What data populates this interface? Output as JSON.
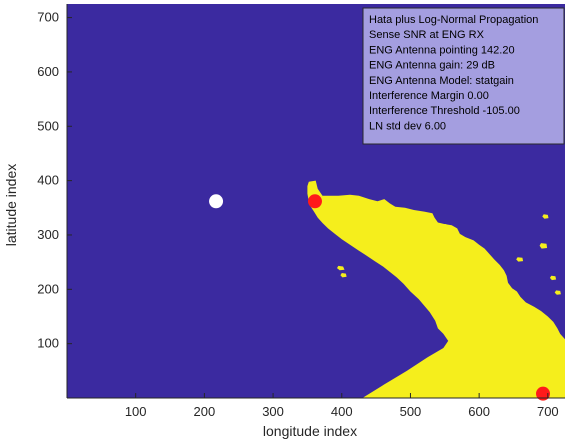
{
  "chart_data": {
    "type": "heatmap",
    "title": "",
    "xlabel": "longitude index",
    "ylabel": "latitude index",
    "xlim": [
      0,
      725
    ],
    "ylim": [
      0,
      725
    ],
    "x_ticks": [
      100,
      200,
      300,
      400,
      500,
      600,
      700
    ],
    "y_ticks": [
      100,
      200,
      300,
      400,
      500,
      600,
      700
    ],
    "grid": false,
    "colors": {
      "background": "#3b2aa0",
      "region": "#f5ee1c",
      "white_marker": "#ffffff",
      "red_marker": "#ff1a1a",
      "info_box_fill": "#a49ee0"
    },
    "markers": [
      {
        "color": "white",
        "x": 217,
        "y": 362
      },
      {
        "color": "red",
        "x": 361,
        "y": 362
      },
      {
        "color": "red",
        "x": 693,
        "y": 8
      }
    ],
    "info_box": {
      "position": "top-right",
      "lines": [
        "Hata plus Log-Normal Propagation",
        "Sense SNR at ENG RX",
        "ENG Antenna pointing 142.20",
        "ENG Antenna gain: 29 dB",
        "ENG Antenna Model: statgain",
        "Interference Margin 0.00",
        "Interference Threshold  -105.00",
        "LN std dev  6.00"
      ]
    },
    "region_polygons": [
      [
        [
          352,
          398
        ],
        [
          362,
          400
        ],
        [
          365,
          385
        ],
        [
          372,
          372
        ],
        [
          395,
          372
        ],
        [
          412,
          374
        ],
        [
          425,
          372
        ],
        [
          440,
          366
        ],
        [
          452,
          362
        ],
        [
          462,
          366
        ],
        [
          470,
          358
        ],
        [
          478,
          352
        ],
        [
          492,
          350
        ],
        [
          505,
          346
        ],
        [
          520,
          343
        ],
        [
          532,
          340
        ],
        [
          535,
          332
        ],
        [
          540,
          323
        ],
        [
          550,
          320
        ],
        [
          560,
          318
        ],
        [
          568,
          312
        ],
        [
          572,
          302
        ],
        [
          580,
          296
        ],
        [
          592,
          290
        ],
        [
          600,
          282
        ],
        [
          608,
          275
        ],
        [
          615,
          265
        ],
        [
          622,
          255
        ],
        [
          630,
          245
        ],
        [
          636,
          235
        ],
        [
          640,
          225
        ],
        [
          642,
          212
        ],
        [
          648,
          202
        ],
        [
          655,
          196
        ],
        [
          660,
          186
        ],
        [
          668,
          176
        ],
        [
          680,
          168
        ],
        [
          690,
          160
        ],
        [
          700,
          150
        ],
        [
          708,
          140
        ],
        [
          714,
          128
        ],
        [
          718,
          118
        ],
        [
          725,
          108
        ],
        [
          725,
          0
        ],
        [
          430,
          0
        ],
        [
          462,
          25
        ],
        [
          495,
          50
        ],
        [
          525,
          75
        ],
        [
          548,
          92
        ],
        [
          555,
          105
        ],
        [
          548,
          118
        ],
        [
          540,
          128
        ],
        [
          536,
          142
        ],
        [
          528,
          158
        ],
        [
          520,
          170
        ],
        [
          512,
          182
        ],
        [
          500,
          196
        ],
        [
          490,
          210
        ],
        [
          480,
          222
        ],
        [
          470,
          232
        ],
        [
          460,
          242
        ],
        [
          448,
          252
        ],
        [
          436,
          262
        ],
        [
          424,
          272
        ],
        [
          412,
          282
        ],
        [
          400,
          292
        ],
        [
          390,
          302
        ],
        [
          380,
          312
        ],
        [
          372,
          322
        ],
        [
          365,
          332
        ],
        [
          360,
          342
        ],
        [
          355,
          352
        ],
        [
          352,
          362
        ],
        [
          350,
          376
        ],
        [
          350,
          390
        ]
      ],
      [
        [
          565,
          230
        ],
        [
          575,
          228
        ],
        [
          580,
          220
        ],
        [
          572,
          212
        ],
        [
          563,
          216
        ],
        [
          560,
          224
        ]
      ],
      [
        [
          498,
          272
        ],
        [
          506,
          270
        ],
        [
          510,
          262
        ],
        [
          502,
          258
        ],
        [
          496,
          264
        ]
      ],
      [
        [
          472,
          248
        ],
        [
          480,
          246
        ],
        [
          482,
          238
        ],
        [
          474,
          236
        ],
        [
          470,
          242
        ]
      ],
      [
        [
          395,
          243
        ],
        [
          402,
          242
        ],
        [
          404,
          236
        ],
        [
          397,
          235
        ],
        [
          393,
          239
        ]
      ],
      [
        [
          400,
          230
        ],
        [
          406,
          229
        ],
        [
          407,
          223
        ],
        [
          401,
          222
        ],
        [
          398,
          226
        ]
      ],
      [
        [
          513,
          285
        ],
        [
          519,
          285
        ],
        [
          521,
          280
        ],
        [
          515,
          279
        ],
        [
          512,
          282
        ]
      ],
      [
        [
          546,
          320
        ],
        [
          552,
          320
        ],
        [
          553,
          314
        ],
        [
          547,
          313
        ],
        [
          545,
          317
        ]
      ],
      [
        [
          516,
          196
        ],
        [
          523,
          194
        ],
        [
          524,
          188
        ],
        [
          517,
          187
        ],
        [
          514,
          191
        ]
      ],
      [
        [
          656,
          259
        ],
        [
          663,
          258
        ],
        [
          664,
          252
        ],
        [
          657,
          251
        ],
        [
          654,
          255
        ]
      ],
      [
        [
          690,
          285
        ],
        [
          698,
          284
        ],
        [
          699,
          276
        ],
        [
          691,
          275
        ],
        [
          688,
          280
        ]
      ],
      [
        [
          705,
          225
        ],
        [
          711,
          224
        ],
        [
          712,
          218
        ],
        [
          706,
          217
        ],
        [
          703,
          221
        ]
      ],
      [
        [
          694,
          338
        ],
        [
          700,
          337
        ],
        [
          701,
          331
        ],
        [
          695,
          330
        ],
        [
          692,
          334
        ]
      ],
      [
        [
          712,
          198
        ],
        [
          718,
          197
        ],
        [
          719,
          191
        ],
        [
          713,
          190
        ],
        [
          710,
          194
        ]
      ]
    ]
  }
}
